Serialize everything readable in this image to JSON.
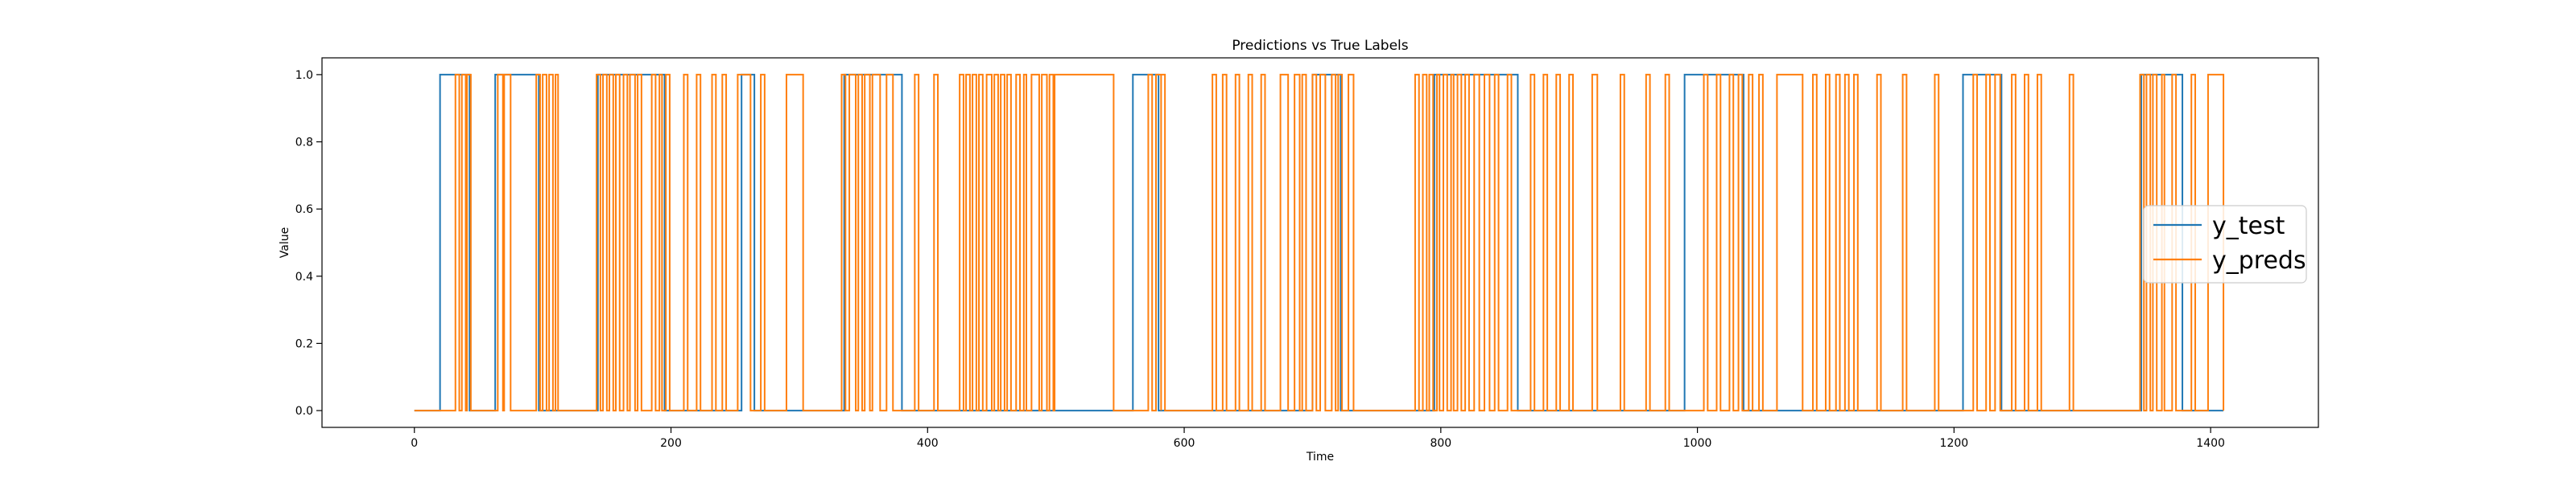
{
  "chart_data": {
    "type": "line",
    "title": "Predictions vs True Labels",
    "xlabel": "Time",
    "ylabel": "Value",
    "xlim": [
      -72,
      1484
    ],
    "ylim": [
      -0.05,
      1.05
    ],
    "xticks": [
      0,
      200,
      400,
      600,
      800,
      1000,
      1200,
      1400
    ],
    "yticks": [
      0.0,
      0.2,
      0.4,
      0.6,
      0.8,
      1.0
    ],
    "ytick_format": 1,
    "grid": false,
    "legend_position": "center-right",
    "series": [
      {
        "name": "y_test",
        "color": "#1f77b4",
        "x_max": 1410,
        "segments_high": [
          [
            20,
            43
          ],
          [
            63,
            97
          ],
          [
            143,
            195
          ],
          [
            255,
            265
          ],
          [
            335,
            380
          ],
          [
            560,
            580
          ],
          [
            700,
            722
          ],
          [
            795,
            860
          ],
          [
            990,
            1036
          ],
          [
            1207,
            1237
          ],
          [
            1346,
            1378
          ]
        ]
      },
      {
        "name": "y_preds",
        "color": "#ff7f0e",
        "x_max": 1410,
        "segments_high": [
          [
            32,
            35
          ],
          [
            37,
            40
          ],
          [
            41,
            44
          ],
          [
            65,
            69
          ],
          [
            70,
            75
          ],
          [
            95,
            98
          ],
          [
            100,
            103
          ],
          [
            105,
            108
          ],
          [
            110,
            112
          ],
          [
            142,
            145
          ],
          [
            147,
            150
          ],
          [
            152,
            155
          ],
          [
            157,
            160
          ],
          [
            163,
            166
          ],
          [
            168,
            172
          ],
          [
            174,
            177
          ],
          [
            185,
            188
          ],
          [
            191,
            193
          ],
          [
            196,
            199
          ],
          [
            210,
            213
          ],
          [
            220,
            223
          ],
          [
            232,
            235
          ],
          [
            240,
            243
          ],
          [
            252,
            262
          ],
          [
            270,
            273
          ],
          [
            290,
            303
          ],
          [
            333,
            336
          ],
          [
            339,
            344
          ],
          [
            346,
            349
          ],
          [
            351,
            355
          ],
          [
            357,
            363
          ],
          [
            368,
            373
          ],
          [
            390,
            393
          ],
          [
            405,
            408
          ],
          [
            425,
            428
          ],
          [
            430,
            433
          ],
          [
            435,
            438
          ],
          [
            440,
            443
          ],
          [
            446,
            450
          ],
          [
            452,
            455
          ],
          [
            457,
            460
          ],
          [
            462,
            465
          ],
          [
            469,
            472
          ],
          [
            475,
            477
          ],
          [
            481,
            487
          ],
          [
            489,
            493
          ],
          [
            495,
            498
          ],
          [
            499,
            545
          ],
          [
            572,
            575
          ],
          [
            578,
            582
          ],
          [
            582,
            585
          ],
          [
            622,
            625
          ],
          [
            630,
            633
          ],
          [
            640,
            643
          ],
          [
            650,
            653
          ],
          [
            660,
            663
          ],
          [
            675,
            681
          ],
          [
            686,
            690
          ],
          [
            692,
            695
          ],
          [
            700,
            703
          ],
          [
            706,
            710
          ],
          [
            715,
            718
          ],
          [
            720,
            723
          ],
          [
            728,
            732
          ],
          [
            780,
            783
          ],
          [
            786,
            789
          ],
          [
            791,
            794
          ],
          [
            797,
            799
          ],
          [
            802,
            805
          ],
          [
            808,
            810
          ],
          [
            813,
            816
          ],
          [
            819,
            822
          ],
          [
            826,
            830
          ],
          [
            834,
            838
          ],
          [
            842,
            845
          ],
          [
            852,
            855
          ],
          [
            870,
            873
          ],
          [
            880,
            883
          ],
          [
            890,
            893
          ],
          [
            900,
            903
          ],
          [
            918,
            922
          ],
          [
            940,
            943
          ],
          [
            960,
            963
          ],
          [
            975,
            978
          ],
          [
            1005,
            1008
          ],
          [
            1015,
            1018
          ],
          [
            1025,
            1028
          ],
          [
            1032,
            1035
          ],
          [
            1040,
            1043
          ],
          [
            1048,
            1051
          ],
          [
            1062,
            1082
          ],
          [
            1090,
            1093
          ],
          [
            1100,
            1103
          ],
          [
            1108,
            1111
          ],
          [
            1115,
            1118
          ],
          [
            1122,
            1125
          ],
          [
            1140,
            1143
          ],
          [
            1160,
            1163
          ],
          [
            1185,
            1188
          ],
          [
            1215,
            1218
          ],
          [
            1225,
            1228
          ],
          [
            1232,
            1236
          ],
          [
            1245,
            1248
          ],
          [
            1255,
            1258
          ],
          [
            1265,
            1268
          ],
          [
            1290,
            1293
          ],
          [
            1345,
            1348
          ],
          [
            1350,
            1353
          ],
          [
            1355,
            1358
          ],
          [
            1362,
            1364
          ],
          [
            1370,
            1373
          ],
          [
            1385,
            1388
          ],
          [
            1398,
            1410
          ]
        ]
      }
    ]
  }
}
